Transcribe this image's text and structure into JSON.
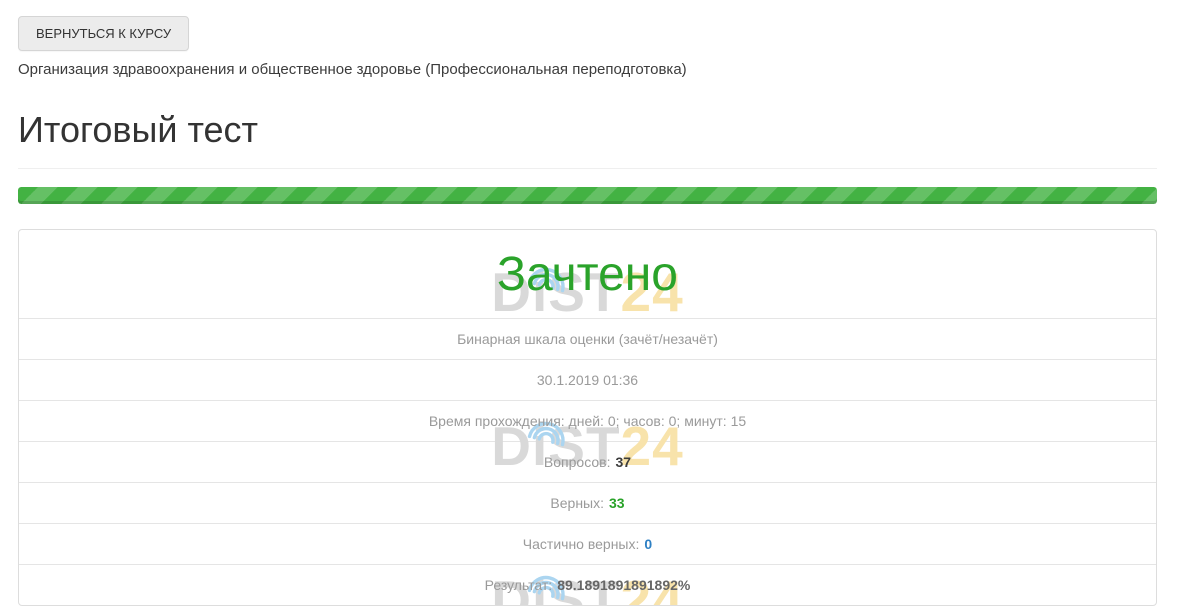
{
  "header": {
    "back_button_label": "ВЕРНУТЬСЯ К КУРСУ",
    "course_title": "Организация здравоохранения и общественное здоровье (Профессиональная переподготовка)",
    "page_title": "Итоговый тест"
  },
  "progress": {
    "percent": 100,
    "bar_color": "#43b243"
  },
  "watermark": {
    "gray": "DiST",
    "accent": "24",
    "gray_color": "#d9d9d9",
    "accent_color": "#f8e3ab",
    "wifi_color": "#abd5f0"
  },
  "card": {
    "status": "Зачтено",
    "status_color": "#2aa32a",
    "rows": [
      {
        "text": "Бинарная шкала оценки (зачёт/незачёт)"
      },
      {
        "text": "30.1.2019 01:36"
      },
      {
        "text": "Время прохождения: дней: 0; часов: 0; минут: 15"
      },
      {
        "label": "Вопросов:",
        "value": "37",
        "value_color": "#3c3c3c"
      },
      {
        "label": "Верных:",
        "value": "33",
        "value_color": "#2aa32a"
      },
      {
        "label": "Частично верных:",
        "value": "0",
        "value_color": "#2e80c4"
      },
      {
        "label": "Результат:",
        "value": "89.1891891891892%",
        "value_color": "#666666"
      }
    ]
  }
}
